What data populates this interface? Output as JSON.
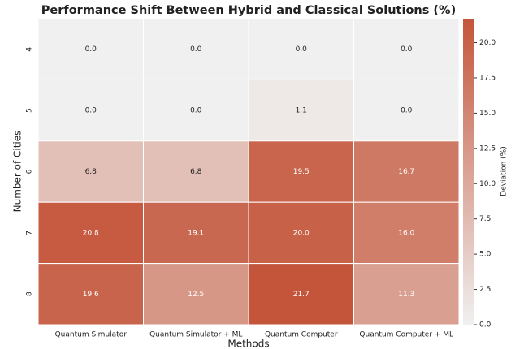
{
  "chart_data": {
    "type": "heatmap",
    "title": "Performance Shift Between Hybrid and Classical Solutions (%)",
    "xlabel": "Methods",
    "ylabel": "Number of Cities",
    "x_categories": [
      "Quantum Simulator",
      "Quantum Simulator + ML",
      "Quantum Computer",
      "Quantum Computer + ML"
    ],
    "y_categories": [
      "4",
      "5",
      "6",
      "7",
      "8"
    ],
    "values": [
      [
        0.0,
        0.0,
        0.0,
        0.0
      ],
      [
        0.0,
        0.0,
        1.1,
        0.0
      ],
      [
        6.8,
        6.8,
        19.5,
        16.7
      ],
      [
        20.8,
        19.1,
        20.0,
        16.0
      ],
      [
        19.6,
        12.5,
        21.7,
        11.3
      ]
    ],
    "value_labels": [
      [
        "0.0",
        "0.0",
        "0.0",
        "0.0"
      ],
      [
        "0.0",
        "0.0",
        "1.1",
        "0.0"
      ],
      [
        "6.8",
        "6.8",
        "19.5",
        "16.7"
      ],
      [
        "20.8",
        "19.1",
        "20.0",
        "16.0"
      ],
      [
        "19.6",
        "12.5",
        "21.7",
        "11.3"
      ]
    ],
    "cmap": [
      "#f0f0f0",
      "#c4553a"
    ],
    "colorbar_label": "Deviation (%)",
    "clim": [
      0,
      21.7
    ],
    "cticks": [
      {
        "value": 0,
        "label": "0.0"
      },
      {
        "value": 2.5,
        "label": "2.5"
      },
      {
        "value": 5,
        "label": "5.0"
      },
      {
        "value": 7.5,
        "label": "7.5"
      },
      {
        "value": 10,
        "label": "10.0"
      },
      {
        "value": 12.5,
        "label": "12.5"
      },
      {
        "value": 15,
        "label": "15.0"
      },
      {
        "value": 17.5,
        "label": "17.5"
      },
      {
        "value": 20,
        "label": "20.0"
      }
    ]
  }
}
